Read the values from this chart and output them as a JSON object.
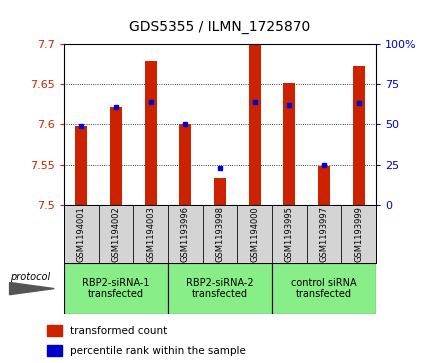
{
  "title": "GDS5355 / ILMN_1725870",
  "samples": [
    "GSM1194001",
    "GSM1194002",
    "GSM1194003",
    "GSM1193996",
    "GSM1193998",
    "GSM1194000",
    "GSM1193995",
    "GSM1193997",
    "GSM1193999"
  ],
  "red_values": [
    7.598,
    7.621,
    7.678,
    7.601,
    7.533,
    7.7,
    7.651,
    7.548,
    7.672
  ],
  "blue_values": [
    49,
    61,
    64,
    50,
    23,
    64,
    62,
    25,
    63
  ],
  "groups": [
    {
      "label": "RBP2-siRNA-1\ntransfected",
      "start": 0,
      "end": 3
    },
    {
      "label": "RBP2-siRNA-2\ntransfected",
      "start": 3,
      "end": 6
    },
    {
      "label": "control siRNA\ntransfected",
      "start": 6,
      "end": 9
    }
  ],
  "ylim_left": [
    7.5,
    7.7
  ],
  "ylim_right": [
    0,
    100
  ],
  "yticks_left": [
    7.5,
    7.55,
    7.6,
    7.65,
    7.7
  ],
  "yticks_right": [
    0,
    25,
    50,
    75,
    100
  ],
  "left_color": "#cc2200",
  "right_color": "#0000cc",
  "bar_bottom": 7.5,
  "bar_width": 0.35,
  "protocol_label": "protocol",
  "legend_red": "transformed count",
  "legend_blue": "percentile rank within the sample",
  "bg_gray": "#d4d4d4",
  "bg_green": "#88ee88"
}
